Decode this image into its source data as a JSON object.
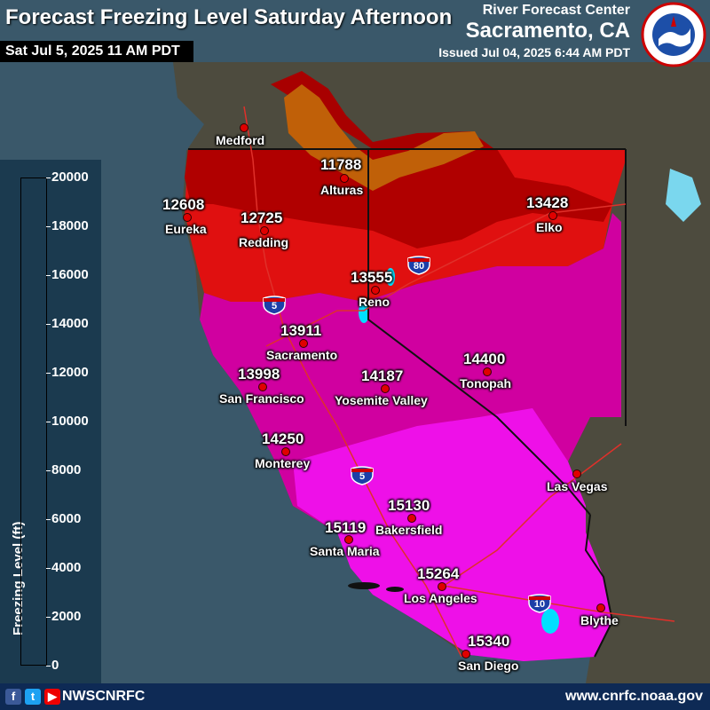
{
  "header": {
    "title": "Forecast Freezing Level Saturday Afternoon",
    "valid_time": "Sat Jul 5, 2025 11 AM PDT",
    "center_name": "River Forecast Center",
    "center_location": "Sacramento, CA",
    "issued": "Issued Jul 04, 2025 6:44 AM PDT",
    "logo_icon": "nws-logo-icon"
  },
  "legend": {
    "title": "Freezing Level (ft)",
    "ticks": [
      "20000",
      "18000",
      "16000",
      "14000",
      "12000",
      "10000",
      "8000",
      "6000",
      "4000",
      "2000",
      "0"
    ],
    "colors": [
      "#9b1fd6",
      "#1a0a90",
      "#1f2fd9",
      "#1c8fe0",
      "#19d4ec",
      "#0fd6a0",
      "#22b84a",
      "#a6c21e",
      "#f5f21c",
      "#e6a40e",
      "#bf5a08",
      "#b8000a",
      "#ff1a1a",
      "#d6007a",
      "#ff1aff",
      "#d896d6",
      "#cfcfcf",
      "#f4f4f4"
    ]
  },
  "map": {
    "water_color": "#3a586a",
    "land_color": "#4a4a3c",
    "highways": [
      {
        "number": "5",
        "icon": "interstate-shield-icon"
      },
      {
        "number": "80",
        "icon": "interstate-shield-icon"
      },
      {
        "number": "5",
        "icon": "interstate-shield-icon"
      },
      {
        "number": "10",
        "icon": "interstate-shield-icon"
      }
    ],
    "cities": [
      {
        "name": "Medford",
        "value": ""
      },
      {
        "name": "Alturas",
        "value": "11788"
      },
      {
        "name": "Eureka",
        "value": "12608"
      },
      {
        "name": "Redding",
        "value": "12725"
      },
      {
        "name": "Elko",
        "value": "13428"
      },
      {
        "name": "Reno",
        "value": "13555"
      },
      {
        "name": "Sacramento",
        "value": "13911"
      },
      {
        "name": "San Francisco",
        "value": "13998"
      },
      {
        "name": "Tonopah",
        "value": "14400"
      },
      {
        "name": "Yosemite Valley",
        "value": "14187"
      },
      {
        "name": "Monterey",
        "value": "14250"
      },
      {
        "name": "Las Vegas",
        "value": ""
      },
      {
        "name": "Bakersfield",
        "value": "15130"
      },
      {
        "name": "Santa Maria",
        "value": "15119"
      },
      {
        "name": "Los Angeles",
        "value": "15264"
      },
      {
        "name": "Blythe",
        "value": ""
      },
      {
        "name": "San Diego",
        "value": "15340"
      }
    ]
  },
  "footer": {
    "social_icons": [
      "facebook-icon",
      "twitter-icon",
      "youtube-icon"
    ],
    "handle": "NWSCNRFC",
    "url": "www.cnrfc.noaa.gov"
  }
}
